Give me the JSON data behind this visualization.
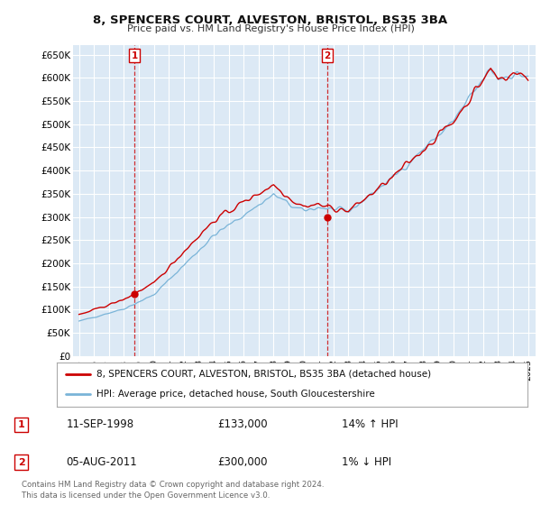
{
  "title": "8, SPENCERS COURT, ALVESTON, BRISTOL, BS35 3BA",
  "subtitle": "Price paid vs. HM Land Registry's House Price Index (HPI)",
  "ylim": [
    0,
    670000
  ],
  "yticks": [
    0,
    50000,
    100000,
    150000,
    200000,
    250000,
    300000,
    350000,
    400000,
    450000,
    500000,
    550000,
    600000,
    650000
  ],
  "ytick_labels": [
    "£0",
    "£50K",
    "£100K",
    "£150K",
    "£200K",
    "£250K",
    "£300K",
    "£350K",
    "£400K",
    "£450K",
    "£500K",
    "£550K",
    "£600K",
    "£650K"
  ],
  "background_color": "#ffffff",
  "plot_bg_color": "#dce9f5",
  "grid_color": "#ffffff",
  "sale1": {
    "date_num": 1998.7,
    "price": 133000,
    "label": "1",
    "date_str": "11-SEP-1998"
  },
  "sale2": {
    "date_num": 2011.58,
    "price": 300000,
    "label": "2",
    "date_str": "05-AUG-2011"
  },
  "legend_line1": "8, SPENCERS COURT, ALVESTON, BRISTOL, BS35 3BA (detached house)",
  "legend_line2": "HPI: Average price, detached house, South Gloucestershire",
  "footer": "Contains HM Land Registry data © Crown copyright and database right 2024.\nThis data is licensed under the Open Government Licence v3.0.",
  "table_rows": [
    {
      "label": "1",
      "date": "11-SEP-1998",
      "price": "£133,000",
      "pct": "14% ↑ HPI"
    },
    {
      "label": "2",
      "date": "05-AUG-2011",
      "price": "£300,000",
      "pct": "1% ↓ HPI"
    }
  ],
  "hpi_color": "#7ab4d8",
  "price_color": "#cc0000",
  "vline_color": "#cc0000"
}
